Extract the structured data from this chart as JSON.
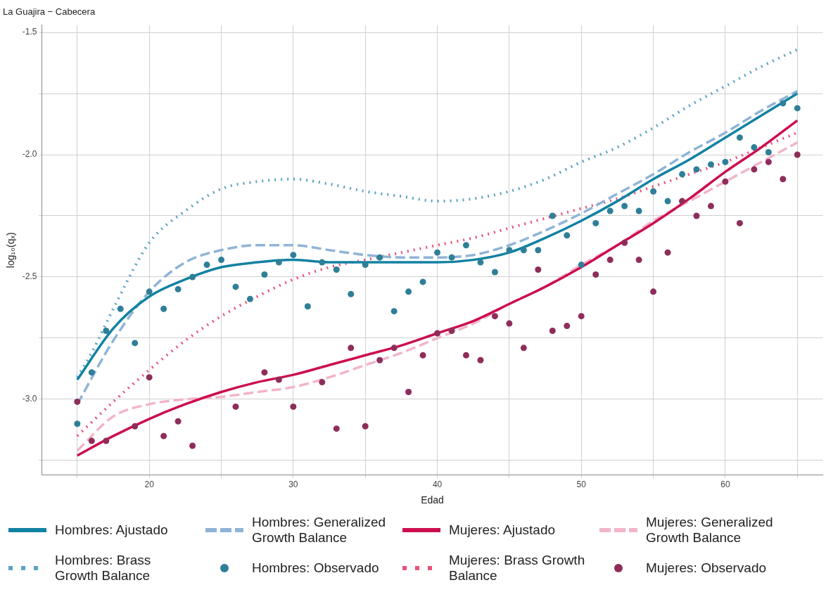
{
  "chart_data": {
    "type": "line",
    "title": "La Guajira − Cabecera",
    "xlabel": "Edad",
    "ylabel": "log₁₀(qₓ)",
    "xlim": [
      12.54,
      66.77
    ],
    "ylim": [
      -3.31,
      -1.47
    ],
    "xticks": [
      {
        "value": 15,
        "label": null
      },
      20,
      {
        "value": 25,
        "label": null
      },
      30,
      {
        "value": 35,
        "label": null
      },
      40,
      {
        "value": 45,
        "label": null
      },
      50,
      {
        "value": 55,
        "label": null
      },
      60,
      {
        "value": 65,
        "label": null
      }
    ],
    "yticks": [
      {
        "value": -3.25,
        "label": null
      },
      {
        "value": -3,
        "label": "-3.0"
      },
      {
        "value": -2.75,
        "label": null
      },
      -2.5,
      {
        "value": -2.25,
        "label": null
      },
      {
        "value": -2,
        "label": "-2.0"
      },
      {
        "value": -1.75,
        "label": null
      },
      -1.5
    ],
    "grid": true,
    "legend": "bottom",
    "series": [
      {
        "name": "Hombres: Ajustado",
        "line_style": "solid",
        "marker": "none",
        "color": "#1282a2",
        "x": [
          15,
          17.5,
          20,
          22.5,
          25,
          27.5,
          30,
          32.5,
          35,
          37.5,
          40,
          42.5,
          45,
          47.5,
          50,
          52.5,
          55,
          57.5,
          60,
          62.5,
          65
        ],
        "values": [
          -2.92,
          -2.71,
          -2.58,
          -2.51,
          -2.46,
          -2.44,
          -2.43,
          -2.44,
          -2.44,
          -2.44,
          -2.44,
          -2.43,
          -2.4,
          -2.34,
          -2.27,
          -2.19,
          -2.1,
          -2.02,
          -1.93,
          -1.84,
          -1.75
        ]
      },
      {
        "name": "Hombres: Generalized Growth Balance",
        "line_style": "dashed",
        "marker": "none",
        "color": "#8fb4d6",
        "x": [
          15,
          17.5,
          20,
          22.5,
          25,
          27.5,
          30,
          32.5,
          35,
          37.5,
          40,
          42.5,
          45,
          47.5,
          50,
          52.5,
          55,
          57.5,
          60,
          62.5,
          65
        ],
        "values": [
          -3.02,
          -2.76,
          -2.56,
          -2.44,
          -2.39,
          -2.37,
          -2.37,
          -2.39,
          -2.41,
          -2.42,
          -2.42,
          -2.41,
          -2.37,
          -2.31,
          -2.24,
          -2.16,
          -2.08,
          -1.99,
          -1.91,
          -1.82,
          -1.74
        ]
      },
      {
        "name": "Mujeres: Ajustado",
        "line_style": "solid",
        "marker": "none",
        "color": "#cc0e4e",
        "x": [
          15,
          17.5,
          20,
          22.5,
          25,
          27.5,
          30,
          32.5,
          35,
          37.5,
          40,
          42.5,
          45,
          47.5,
          50,
          52.5,
          55,
          57.5,
          60,
          62.5,
          65
        ],
        "values": [
          -3.23,
          -3.15,
          -3.08,
          -3.02,
          -2.97,
          -2.93,
          -2.9,
          -2.86,
          -2.82,
          -2.78,
          -2.73,
          -2.68,
          -2.61,
          -2.54,
          -2.46,
          -2.37,
          -2.28,
          -2.18,
          -2.07,
          -1.97,
          -1.86
        ]
      },
      {
        "name": "Mujeres: Generalized Growth Balance",
        "line_style": "dashed",
        "marker": "none",
        "color": "#f2b5c8",
        "x": [
          15,
          17.5,
          20,
          22.5,
          25,
          27.5,
          30,
          32.5,
          35,
          37.5,
          40,
          42.5,
          45,
          47.5,
          50,
          52.5,
          55,
          57.5,
          60,
          62.5,
          65
        ],
        "values": [
          -3.21,
          -3.07,
          -3.02,
          -3.0,
          -2.99,
          -2.97,
          -2.95,
          -2.91,
          -2.86,
          -2.81,
          -2.75,
          -2.69,
          -2.61,
          -2.54,
          -2.45,
          -2.37,
          -2.27,
          -2.19,
          -2.11,
          -2.03,
          -1.95
        ]
      },
      {
        "name": "Hombres: Brass Growth Balance",
        "line_style": "dotted",
        "marker": "none",
        "color": "#5ba3c4",
        "x": [
          15,
          16,
          17.5,
          20,
          22.5,
          25,
          27.5,
          30,
          32.5,
          35,
          37.5,
          40,
          42.5,
          45,
          47.5,
          50,
          52.5,
          55,
          57.5,
          60,
          62.5,
          65
        ],
        "values": [
          -2.91,
          -2.81,
          -2.63,
          -2.36,
          -2.23,
          -2.14,
          -2.11,
          -2.1,
          -2.12,
          -2.15,
          -2.17,
          -2.19,
          -2.18,
          -2.15,
          -2.1,
          -2.03,
          -1.97,
          -1.89,
          -1.8,
          -1.72,
          -1.64,
          -1.57
        ]
      },
      {
        "name": "Hombres: Observado",
        "type": "scatter",
        "marker": "circle",
        "color": "#2e7f97",
        "x": [
          15,
          16,
          17,
          18,
          19,
          20,
          21,
          22,
          23,
          24,
          25,
          26,
          27,
          28,
          29,
          30,
          31,
          32,
          33,
          34,
          35,
          36,
          37,
          38,
          39,
          40,
          41,
          42,
          43,
          44,
          45,
          46,
          47,
          48,
          49,
          50,
          51,
          52,
          53,
          54,
          55,
          56,
          57,
          58,
          59,
          60,
          61,
          62,
          63,
          64,
          65
        ],
        "values": [
          -3.1,
          -2.89,
          -2.72,
          -2.63,
          -2.77,
          -2.56,
          -2.63,
          -2.55,
          -2.5,
          -2.45,
          -2.43,
          -2.54,
          -2.59,
          -2.49,
          -2.44,
          -2.41,
          -2.62,
          -2.44,
          -2.47,
          -2.57,
          -2.45,
          -2.42,
          -2.64,
          -2.56,
          -2.52,
          -2.4,
          -2.42,
          -2.37,
          -2.44,
          -2.48,
          -2.39,
          -2.39,
          -2.39,
          -2.25,
          -2.33,
          -2.45,
          -2.28,
          -2.23,
          -2.21,
          -2.23,
          -2.15,
          -2.19,
          -2.08,
          -2.06,
          -2.04,
          -2.03,
          -1.93,
          -1.97,
          -1.99,
          -1.79,
          -1.81
        ]
      },
      {
        "name": "Mujeres: Brass Growth Balance",
        "line_style": "dotted",
        "marker": "none",
        "color": "#e8547a",
        "x": [
          15,
          17.5,
          20,
          22.5,
          25,
          27.5,
          30,
          32.5,
          35,
          37.5,
          40,
          42.5,
          45,
          47.5,
          50,
          52.5,
          55,
          57.5,
          60,
          62.5,
          65
        ],
        "values": [
          -3.15,
          -3.01,
          -2.88,
          -2.76,
          -2.66,
          -2.58,
          -2.51,
          -2.46,
          -2.43,
          -2.4,
          -2.37,
          -2.34,
          -2.3,
          -2.26,
          -2.22,
          -2.18,
          -2.13,
          -2.08,
          -2.03,
          -1.97,
          -1.91
        ]
      },
      {
        "name": "Mujeres: Observado",
        "type": "scatter",
        "marker": "circle",
        "color": "#8e2d5a",
        "x": [
          15,
          16,
          17,
          18,
          19,
          20,
          21,
          22,
          23,
          24,
          25,
          26,
          27,
          28,
          29,
          30,
          31,
          32,
          33,
          34,
          35,
          36,
          37,
          38,
          39,
          40,
          41,
          42,
          43,
          44,
          45,
          46,
          47,
          48,
          49,
          50,
          51,
          52,
          53,
          54,
          55,
          56,
          57,
          58,
          59,
          60,
          61,
          62,
          63,
          64,
          65
        ],
        "values": [
          -3.01,
          -3.17,
          -3.17,
          null,
          -3.11,
          -2.91,
          -3.15,
          -3.09,
          -3.19,
          null,
          null,
          -3.03,
          null,
          -2.89,
          -2.92,
          -3.03,
          null,
          -2.93,
          -3.12,
          -2.79,
          -3.11,
          -2.84,
          -2.79,
          -2.97,
          -2.82,
          -2.73,
          -2.72,
          -2.82,
          -2.84,
          -2.66,
          -2.69,
          -2.79,
          -2.47,
          -2.72,
          -2.7,
          -2.66,
          -2.49,
          -2.43,
          -2.36,
          -2.43,
          -2.56,
          -2.4,
          -2.19,
          -2.25,
          -2.21,
          -2.11,
          -2.28,
          -2.06,
          -2.03,
          -2.1,
          -2.0
        ]
      }
    ]
  }
}
